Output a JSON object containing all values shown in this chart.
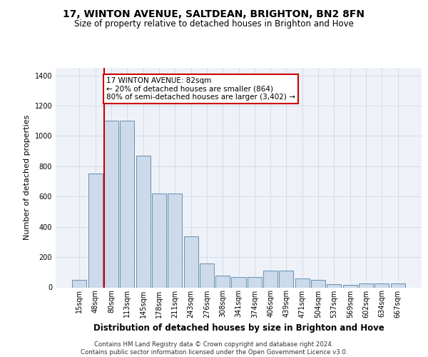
{
  "title_line1": "17, WINTON AVENUE, SALTDEAN, BRIGHTON, BN2 8FN",
  "title_line2": "Size of property relative to detached houses in Brighton and Hove",
  "xlabel": "Distribution of detached houses by size in Brighton and Hove",
  "ylabel": "Number of detached properties",
  "footnote1": "Contains HM Land Registry data © Crown copyright and database right 2024.",
  "footnote2": "Contains public sector information licensed under the Open Government Licence v3.0.",
  "bar_labels": [
    "15sqm",
    "48sqm",
    "80sqm",
    "113sqm",
    "145sqm",
    "178sqm",
    "211sqm",
    "243sqm",
    "276sqm",
    "308sqm",
    "341sqm",
    "374sqm",
    "406sqm",
    "439sqm",
    "471sqm",
    "504sqm",
    "537sqm",
    "569sqm",
    "602sqm",
    "634sqm",
    "667sqm"
  ],
  "bar_values": [
    50,
    750,
    1100,
    1100,
    870,
    620,
    620,
    335,
    160,
    80,
    70,
    70,
    110,
    110,
    60,
    48,
    22,
    18,
    28,
    28,
    28
  ],
  "bar_color": "#ccdaeb",
  "bar_edge_color": "#6690b0",
  "vline_x_idx": 2,
  "vline_color": "#cc0000",
  "annotation_text": "17 WINTON AVENUE: 82sqm\n← 20% of detached houses are smaller (864)\n80% of semi-detached houses are larger (3,402) →",
  "annotation_box_edgecolor": "#cc0000",
  "ylim": [
    0,
    1450
  ],
  "yticks": [
    0,
    200,
    400,
    600,
    800,
    1000,
    1200,
    1400
  ],
  "grid_color": "#d4dce8",
  "bg_color": "#eef2f8",
  "title1_fontsize": 10,
  "title2_fontsize": 8.5,
  "xlabel_fontsize": 8.5,
  "ylabel_fontsize": 8,
  "footnote_fontsize": 6.2,
  "annot_fontsize": 7.5,
  "tick_fontsize": 7
}
